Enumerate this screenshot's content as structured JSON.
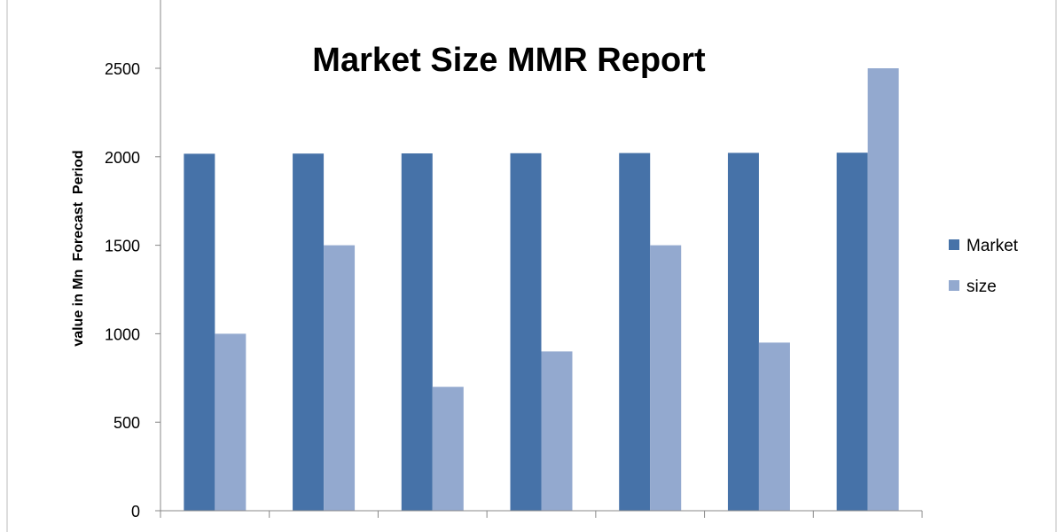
{
  "chart_data": {
    "type": "bar",
    "title": "Market Size MMR Report",
    "xlabel": "",
    "ylabel": "value in Mn  Forecast  Period",
    "ylim": [
      0,
      2500
    ],
    "yticks": [
      0,
      500,
      1000,
      1500,
      2000,
      2500
    ],
    "grid": false,
    "legend": "right",
    "categories": [
      "",
      "",
      "",
      "",
      "",
      "",
      ""
    ],
    "series": [
      {
        "name": "Market",
        "color": "#4672A8",
        "values": [
          2017,
          2018,
          2019,
          2020,
          2021,
          2022,
          2023
        ]
      },
      {
        "name": "size",
        "color": "#93A9CF",
        "values": [
          1000,
          1500,
          700,
          900,
          1500,
          950,
          2500
        ]
      }
    ]
  }
}
